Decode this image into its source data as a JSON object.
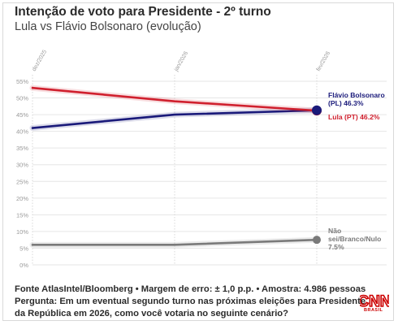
{
  "header": {
    "title": "Intenção de voto para Presidente - 2º turno",
    "subtitle": "Lula vs Flávio Bolsonaro (evolução)"
  },
  "chart_data": {
    "type": "line",
    "title": "Intenção de voto para Presidente - 2º turno",
    "subtitle": "Lula vs Flávio Bolsonaro (evolução)",
    "x": [
      "dez/2025",
      "jan/2026",
      "fev/2026"
    ],
    "y_ticks": [
      "0%",
      "5%",
      "10%",
      "15%",
      "20%",
      "25%",
      "30%",
      "35%",
      "40%",
      "45%",
      "50%",
      "55%"
    ],
    "ylim": [
      0,
      55
    ],
    "grid": true,
    "series": [
      {
        "name": "Flávio Bolsonaro (PL)",
        "label_lines": [
          "Flávio Bolsonaro",
          "(PL) 46.3%"
        ],
        "values": [
          41.0,
          45.0,
          46.3
        ],
        "color": "#1a1a7a"
      },
      {
        "name": "Lula (PT)",
        "label_lines": [
          "Lula (PT) 46.2%"
        ],
        "values": [
          53.0,
          49.0,
          46.2
        ],
        "color": "#d0202e"
      },
      {
        "name": "Não sei/Branco/Nulo",
        "label_lines": [
          "Não",
          "sei/Branco/Nulo",
          "7.5%"
        ],
        "values": [
          6.0,
          6.0,
          7.5
        ],
        "color": "#7a7a7a"
      }
    ]
  },
  "footer": {
    "line1": "Fonte AtlasIntel/Bloomberg • Margem de erro: ± 1,0 p.p. • Amostra: 4.986 pessoas",
    "line2": "Pergunta: Em um eventual segundo turno nas próximas eleições para Presidente",
    "line3": "da República em 2026, como você votaria no seguinte cenário?"
  },
  "logo": {
    "text": "CNN",
    "sub": "BRASIL",
    "color": "#cc0000"
  }
}
